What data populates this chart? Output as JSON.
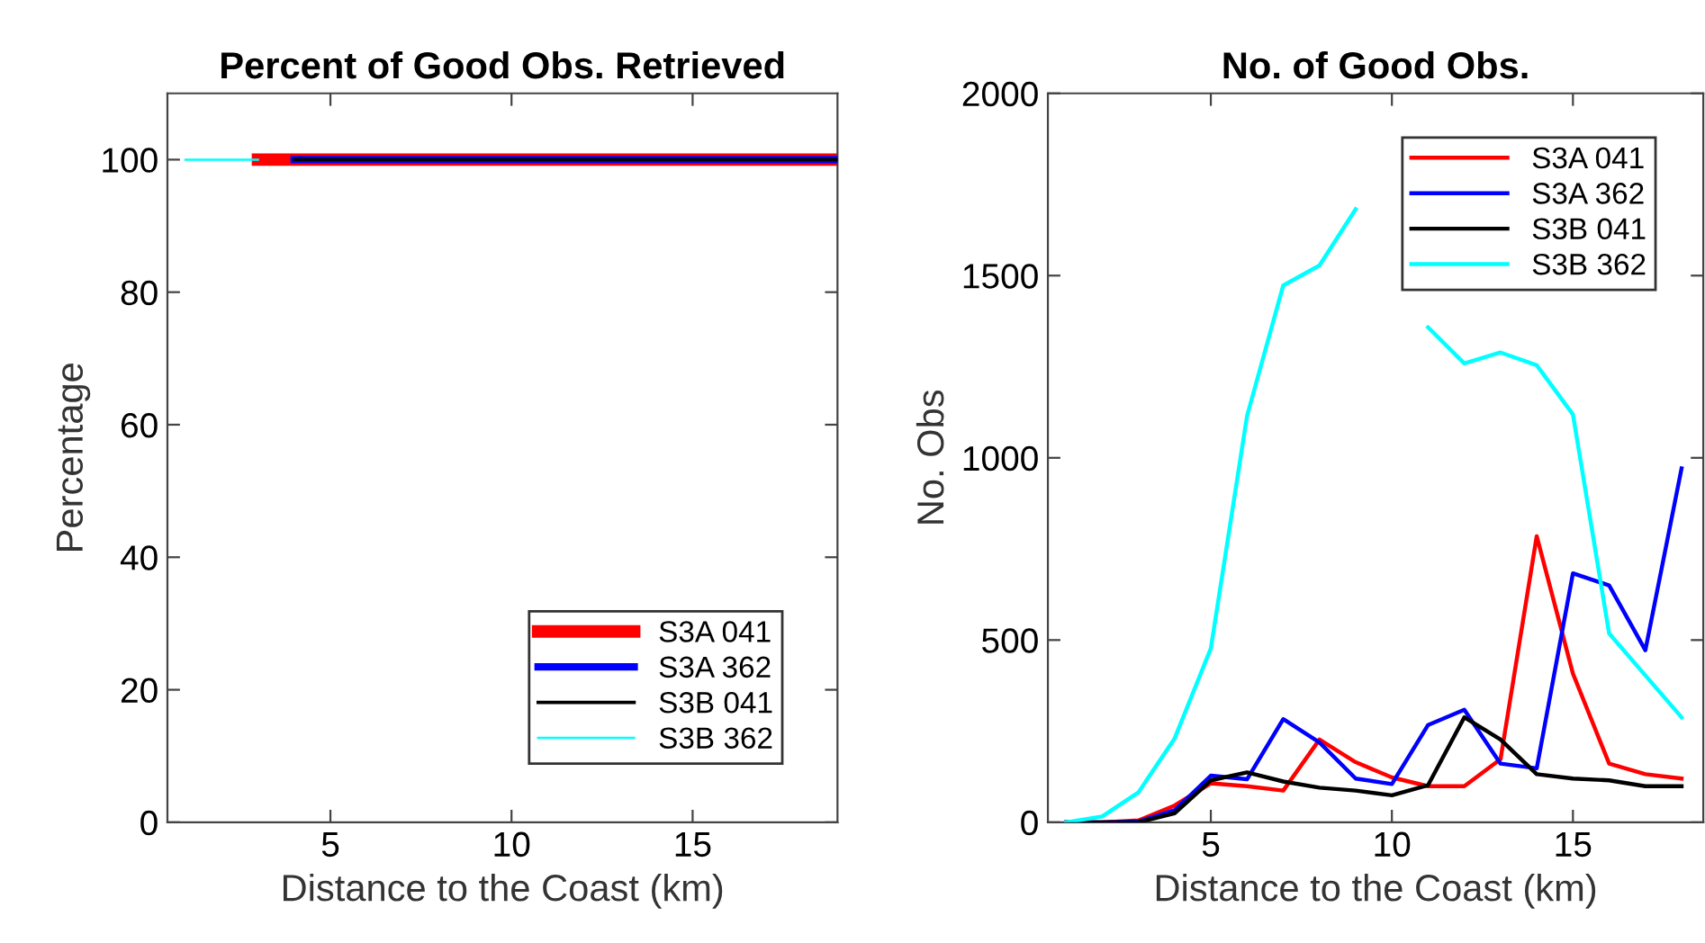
{
  "chart_data": [
    {
      "type": "line",
      "title": "Percent of Good Obs. Retrieved",
      "xlabel": "Distance to the Coast (km)",
      "ylabel": "Percentage",
      "xlim": [
        0.5,
        19
      ],
      "xticks": [
        5,
        10,
        15
      ],
      "ylim": [
        0,
        110
      ],
      "yticks": [
        0,
        20,
        40,
        60,
        80,
        100
      ],
      "grid": false,
      "legend": "bottom right",
      "series": [
        {
          "name": "S3A 041",
          "color": "#ff0000",
          "x": [
            3,
            4,
            5,
            6,
            7,
            8,
            9,
            10,
            11,
            12,
            13,
            14,
            15,
            16,
            17,
            18,
            19
          ],
          "values": [
            100,
            100,
            100,
            100,
            100,
            100,
            100,
            100,
            100,
            100,
            100,
            100,
            100,
            100,
            100,
            100,
            100
          ]
        },
        {
          "name": "S3A 362",
          "color": "#0000ff",
          "x": [
            4,
            5,
            6,
            7,
            8,
            9,
            10,
            11,
            12,
            13,
            14,
            15,
            16,
            17,
            18,
            19
          ],
          "values": [
            100,
            100,
            100,
            100,
            100,
            100,
            100,
            100,
            100,
            100,
            100,
            100,
            100,
            100,
            100,
            100
          ]
        },
        {
          "name": "S3B 041",
          "color": "#000000",
          "x": [
            4,
            5,
            6,
            7,
            8,
            9,
            10,
            11,
            12,
            13,
            14,
            15,
            16,
            17,
            18,
            19
          ],
          "values": [
            100,
            100,
            100,
            100,
            100,
            100,
            100,
            100,
            100,
            100,
            100,
            100,
            100,
            100,
            100,
            100
          ]
        },
        {
          "name": "S3B 362",
          "color": "#00ffff",
          "x": [
            1,
            2,
            3
          ],
          "values": [
            100,
            100,
            100
          ]
        }
      ]
    },
    {
      "type": "line",
      "title": "No. of Good Obs.",
      "xlabel": "Distance to the Coast (km)",
      "ylabel": "No. Obs",
      "xlim": [
        0.5,
        18.6
      ],
      "xticks": [
        5,
        10,
        15
      ],
      "ylim": [
        0,
        2000
      ],
      "yticks": [
        0,
        500,
        1000,
        1500,
        2000
      ],
      "grid": false,
      "legend": "top right",
      "x": [
        1,
        2,
        3,
        4,
        5,
        6,
        7,
        8,
        9,
        10,
        11,
        12,
        13,
        14,
        15,
        16,
        17,
        18
      ],
      "series": [
        {
          "name": "S3A 041",
          "color": "#ff0000",
          "values": [
            0,
            0,
            5,
            46,
            107,
            99,
            87,
            227,
            165,
            123,
            99,
            99,
            173,
            785,
            408,
            161,
            132,
            120
          ]
        },
        {
          "name": "S3A 362",
          "color": "#0000ff",
          "values": [
            0,
            0,
            2,
            33,
            128,
            118,
            283,
            219,
            120,
            105,
            267,
            309,
            161,
            148,
            683,
            650,
            472,
            971
          ]
        },
        {
          "name": "S3B 041",
          "color": "#000000",
          "values": [
            0,
            0,
            0,
            25,
            115,
            137,
            112,
            95,
            87,
            74,
            102,
            288,
            227,
            132,
            120,
            115,
            99,
            99
          ]
        },
        {
          "name": "S3B 362",
          "color": "#00ffff",
          "values": [
            0,
            16,
            82,
            230,
            477,
            1115,
            1473,
            1528,
            1682,
            null,
            1358,
            1259,
            1289,
            1254,
            1119,
            518,
            403,
            288
          ]
        }
      ]
    }
  ]
}
